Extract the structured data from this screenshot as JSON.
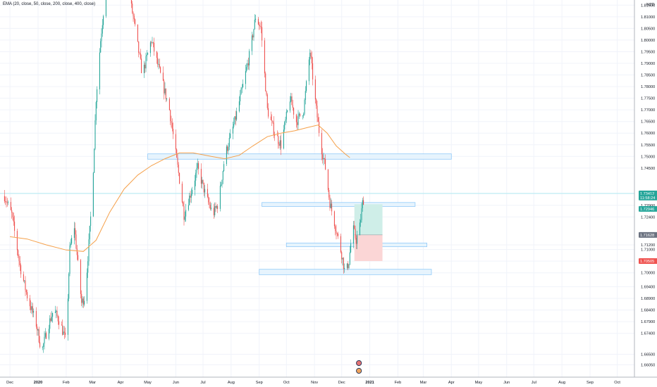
{
  "legend": {
    "text": "EMA (20, close, 50, close, 200, close, 400, close)"
  },
  "colors": {
    "bull": "#26a69a",
    "bear": "#ef5350",
    "ema": "#f5a04a",
    "zone_fill": "#e3f2fd",
    "zone_stroke": "#90caf9",
    "grid": "#f0f3fa",
    "axis": "#b2b5be",
    "target_fill": "#cfeee8",
    "stop_fill": "#fbd6d6",
    "last_price_line": "#b2ebf2",
    "tag_teal": "#26a69a",
    "tag_gray": "#6b7280",
    "tag_red": "#ef5350"
  },
  "chart_data": {
    "type": "candlestick",
    "instrument_currency": "NZD",
    "x_axis_labels": [
      "Dec",
      "2020",
      "Feb",
      "Mar",
      "Apr",
      "May",
      "Jun",
      "Jul",
      "Aug",
      "Sep",
      "Oct",
      "Nov",
      "Dec",
      "2021",
      "Feb",
      "Mar",
      "Apr",
      "May",
      "Jun",
      "Jul",
      "Aug",
      "Sep",
      "Oct"
    ],
    "y_ticks": [
      "1.66050",
      "1.66500",
      "1.67400",
      "1.67900",
      "1.68400",
      "1.68900",
      "1.69400",
      "1.70000",
      "1.70500",
      "1.71000",
      "1.71200",
      "1.72400",
      "1.72900",
      "1.73400",
      "1.74500",
      "1.75000",
      "1.75500",
      "1.76000",
      "1.76500",
      "1.77000",
      "1.77500",
      "1.78000",
      "1.78500",
      "1.79000",
      "1.79500",
      "1.80000",
      "1.80500",
      "1.81000",
      "1.81500"
    ],
    "price_tags": {
      "last": "1.73412",
      "countdown": "11:58:24",
      "target": "1.72946",
      "entry": "1.71628",
      "stop": "1.70505"
    },
    "zones": [
      {
        "top": 1.7511,
        "bottom": 1.7488,
        "from": "2020-05-01",
        "to": "2021-04-01"
      },
      {
        "top": 1.7302,
        "bottom": 1.7285,
        "from": "2020-09-04",
        "to": "2021-02-20"
      },
      {
        "top": 1.7128,
        "bottom": 1.7112,
        "from": "2020-10-01",
        "to": "2021-03-05"
      },
      {
        "top": 1.7015,
        "bottom": 1.6992,
        "from": "2020-09-01",
        "to": "2021-03-10"
      }
    ],
    "position": {
      "from": "2020-12-15",
      "to": "2021-01-15",
      "target": 1.72946,
      "entry": 1.71628,
      "stop": 1.70505
    },
    "ema": [
      [
        "2019-12-01",
        1.7155
      ],
      [
        "2019-12-20",
        1.7145
      ],
      [
        "2020-01-10",
        1.712
      ],
      [
        "2020-02-01",
        1.7098
      ],
      [
        "2020-02-20",
        1.7092
      ],
      [
        "2020-03-05",
        1.714
      ],
      [
        "2020-03-20",
        1.726
      ],
      [
        "2020-04-05",
        1.736
      ],
      [
        "2020-04-20",
        1.742
      ],
      [
        "2020-05-05",
        1.746
      ],
      [
        "2020-05-20",
        1.749
      ],
      [
        "2020-06-05",
        1.7515
      ],
      [
        "2020-06-20",
        1.7515
      ],
      [
        "2020-07-10",
        1.75
      ],
      [
        "2020-07-25",
        1.749
      ],
      [
        "2020-08-10",
        1.7505
      ],
      [
        "2020-08-25",
        1.7545
      ],
      [
        "2020-09-10",
        1.7585
      ],
      [
        "2020-09-25",
        1.76
      ],
      [
        "2020-10-10",
        1.761
      ],
      [
        "2020-10-25",
        1.7625
      ],
      [
        "2020-11-05",
        1.7635
      ],
      [
        "2020-11-15",
        1.76
      ],
      [
        "2020-11-25",
        1.7545
      ],
      [
        "2020-12-05",
        1.751
      ],
      [
        "2020-12-10",
        1.7495
      ]
    ],
    "price_path": [
      [
        "2019-11-25",
        1.733
      ],
      [
        "2019-12-03",
        1.725
      ],
      [
        "2019-12-12",
        1.703
      ],
      [
        "2019-12-20",
        1.69
      ],
      [
        "2019-12-30",
        1.678
      ],
      [
        "2020-01-05",
        1.666
      ],
      [
        "2020-01-12",
        1.677
      ],
      [
        "2020-01-18",
        1.684
      ],
      [
        "2020-01-25",
        1.679
      ],
      [
        "2020-02-01",
        1.67
      ],
      [
        "2020-02-05",
        1.71
      ],
      [
        "2020-02-10",
        1.72
      ],
      [
        "2020-02-18",
        1.687
      ],
      [
        "2020-02-22",
        1.69
      ],
      [
        "2020-03-01",
        1.735
      ],
      [
        "2020-03-05",
        1.775
      ],
      [
        "2020-03-10",
        1.8
      ],
      [
        "2020-03-15",
        1.82
      ],
      [
        "2020-03-25",
        1.835
      ],
      [
        "2020-04-05",
        1.83
      ],
      [
        "2020-04-15",
        1.81
      ],
      [
        "2020-04-25",
        1.785
      ],
      [
        "2020-05-05",
        1.8
      ],
      [
        "2020-05-15",
        1.785
      ],
      [
        "2020-05-25",
        1.77
      ],
      [
        "2020-06-05",
        1.74
      ],
      [
        "2020-06-10",
        1.725
      ],
      [
        "2020-06-18",
        1.735
      ],
      [
        "2020-06-25",
        1.745
      ],
      [
        "2020-07-05",
        1.732
      ],
      [
        "2020-07-12",
        1.725
      ],
      [
        "2020-07-18",
        1.73
      ],
      [
        "2020-07-25",
        1.75
      ],
      [
        "2020-08-05",
        1.765
      ],
      [
        "2020-08-15",
        1.782
      ],
      [
        "2020-08-22",
        1.795
      ],
      [
        "2020-08-28",
        1.81
      ],
      [
        "2020-09-03",
        1.805
      ],
      [
        "2020-09-10",
        1.77
      ],
      [
        "2020-09-18",
        1.76
      ],
      [
        "2020-09-25",
        1.755
      ],
      [
        "2020-10-05",
        1.775
      ],
      [
        "2020-10-12",
        1.765
      ],
      [
        "2020-10-20",
        1.77
      ],
      [
        "2020-10-27",
        1.795
      ],
      [
        "2020-11-03",
        1.77
      ],
      [
        "2020-11-08",
        1.755
      ],
      [
        "2020-11-13",
        1.745
      ],
      [
        "2020-11-18",
        1.73
      ],
      [
        "2020-11-24",
        1.72
      ],
      [
        "2020-12-01",
        1.708
      ],
      [
        "2020-12-05",
        1.699
      ],
      [
        "2020-12-09",
        1.705
      ],
      [
        "2020-12-13",
        1.72
      ],
      [
        "2020-12-17",
        1.714
      ],
      [
        "2020-12-21",
        1.72
      ],
      [
        "2020-12-24",
        1.73
      ],
      [
        "2020-12-27",
        1.7341
      ]
    ]
  }
}
